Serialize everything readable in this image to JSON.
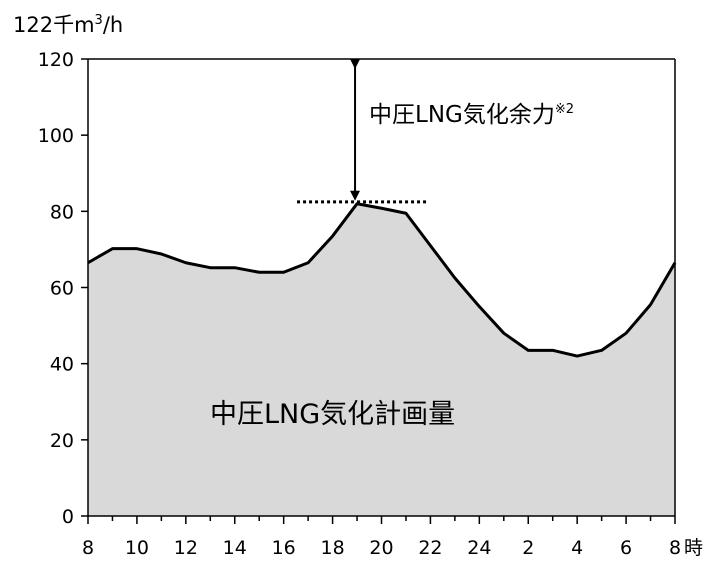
{
  "chart_data": {
    "type": "area",
    "title": "",
    "ylabel": "",
    "ylabel_unit": {
      "prefix": "122千m",
      "sup": "3",
      "suffix": "/h"
    },
    "xlabel_unit": "時",
    "ylim": [
      0,
      120
    ],
    "yticks": [
      "0",
      "20",
      "40",
      "60",
      "80",
      "100",
      "120"
    ],
    "xticks": [
      "8",
      "10",
      "12",
      "14",
      "16",
      "18",
      "20",
      "22",
      "24",
      "2",
      "4",
      "6",
      "8"
    ],
    "x_hours_from_8": [
      0,
      1,
      2,
      3,
      4,
      5,
      6,
      7,
      8,
      9,
      10,
      11,
      12,
      13,
      14,
      15,
      16,
      17,
      18,
      19,
      20,
      21,
      22,
      23,
      24
    ],
    "series": [
      {
        "values": [
          66.5,
          70.2,
          70.2,
          68.8,
          66.5,
          65.2,
          65.2,
          64.0,
          64.0,
          66.5,
          73.5,
          82.0,
          80.8,
          79.5,
          71.0,
          62.5,
          55.0,
          48.0,
          43.5,
          43.5,
          42.0,
          43.5,
          48.0,
          55.5,
          66.5
        ],
        "fill": "#d9d9d9",
        "stroke": "#000000"
      }
    ],
    "annotations": {
      "area_label": "中圧LNG気化計画量",
      "capacity_label": "中圧LNG気化余力",
      "capacity_note": "※2",
      "arrow_from": 120,
      "arrow_to": 82,
      "dotted_level": 82.5
    },
    "grid": false,
    "legend": "none",
    "colors": {
      "area_fill": "#d9d9d9",
      "line": "#000000",
      "axis": "#000000"
    }
  }
}
